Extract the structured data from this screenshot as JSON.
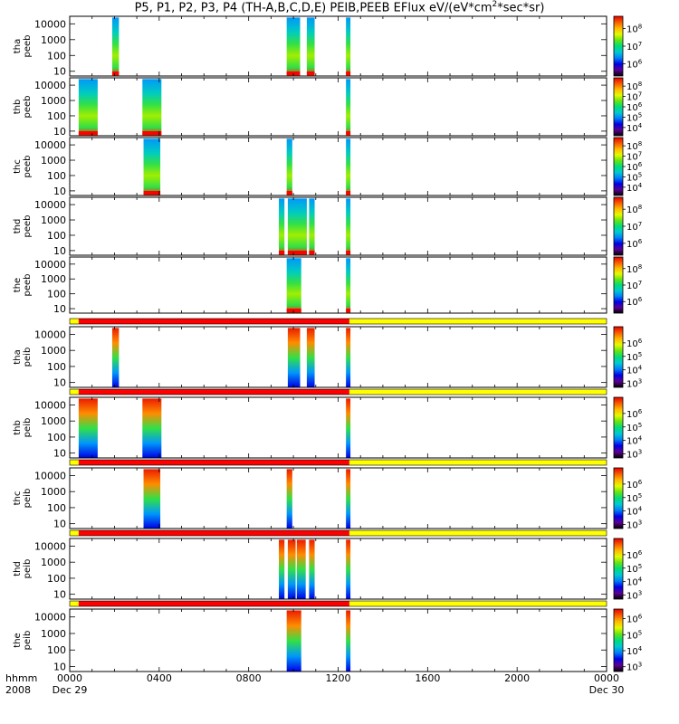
{
  "title_prefix": "P5, P1, P2, P3, P4 (TH-A,B,C,D,E) PEIB,PEEB EFlux eV/(eV*cm",
  "title_mid": "*sec*sr)",
  "title_sup": "2",
  "footer": {
    "hhmm": "hhmm",
    "year": "2008",
    "start_date": "Dec 29",
    "end_date": "Dec 30"
  },
  "chart_data": {
    "type": "heatmap",
    "x": {
      "label": "hhmm",
      "ticks": [
        "0000",
        "0400",
        "0800",
        "1200",
        "1600",
        "2000",
        "0000"
      ],
      "range_hours": [
        0,
        24
      ]
    },
    "y": {
      "scale": "log",
      "unit": "eV",
      "range": [
        5,
        30000
      ],
      "ticks": [
        "10",
        "100",
        "1000",
        "10000"
      ]
    },
    "colormap": "rainbow (black-purple-blue-cyan-green-yellow-orange-red)",
    "panels": [
      {
        "probe": "tha",
        "product": "peeb",
        "colorbar": {
          "log_range": [
            5.3,
            8.7
          ],
          "ticks": [
            "10^6",
            "10^7",
            "10^8"
          ]
        },
        "intervals_hours": [
          [
            1.9,
            2.2
          ],
          [
            9.7,
            10.3
          ],
          [
            10.6,
            10.95
          ],
          [
            12.35,
            12.55
          ]
        ]
      },
      {
        "probe": "thb",
        "product": "peeb",
        "colorbar": {
          "log_range": [
            3.2,
            8.8
          ],
          "ticks": [
            "10^4",
            "10^5",
            "10^6",
            "10^7",
            "10^8"
          ]
        },
        "intervals_hours": [
          [
            0.4,
            1.25
          ],
          [
            3.25,
            4.1
          ],
          [
            12.35,
            12.55
          ]
        ]
      },
      {
        "probe": "thc",
        "product": "peeb",
        "colorbar": {
          "log_range": [
            3.2,
            8.8
          ],
          "ticks": [
            "10^4",
            "10^5",
            "10^6",
            "10^7",
            "10^8"
          ]
        },
        "intervals_hours": [
          [
            3.3,
            4.05
          ],
          [
            9.7,
            9.95
          ],
          [
            12.35,
            12.55
          ]
        ]
      },
      {
        "probe": "thd",
        "product": "peeb",
        "colorbar": {
          "log_range": [
            5.3,
            8.7
          ],
          "ticks": [
            "10^6",
            "10^7",
            "10^8"
          ]
        },
        "intervals_hours": [
          [
            9.35,
            9.6
          ],
          [
            9.75,
            10.6
          ],
          [
            10.7,
            10.95
          ],
          [
            12.35,
            12.55
          ]
        ]
      },
      {
        "probe": "the",
        "product": "peeb",
        "colorbar": {
          "log_range": [
            5.3,
            8.7
          ],
          "ticks": [
            "10^6",
            "10^7",
            "10^8"
          ]
        },
        "intervals_hours": [
          [
            9.7,
            10.35
          ],
          [
            12.35,
            12.55
          ]
        ]
      },
      {
        "probe": "tha",
        "product": "peib",
        "colorbar": {
          "log_range": [
            2.7,
            7.2
          ],
          "ticks": [
            "10^3",
            "10^4",
            "10^5",
            "10^6"
          ]
        },
        "status_bar": {
          "red_hours": [
            0.4,
            12.5
          ],
          "yellow_hours": [
            12.5,
            24
          ]
        },
        "intervals_hours": [
          [
            1.9,
            2.2
          ],
          [
            9.75,
            10.3
          ],
          [
            10.6,
            10.95
          ],
          [
            12.35,
            12.55
          ]
        ]
      },
      {
        "probe": "thb",
        "product": "peib",
        "colorbar": {
          "log_range": [
            2.7,
            7.2
          ],
          "ticks": [
            "10^3",
            "10^4",
            "10^5",
            "10^6"
          ]
        },
        "status_bar": {
          "red_hours": [
            0.4,
            12.5
          ],
          "yellow_hours": [
            12.5,
            24
          ]
        },
        "intervals_hours": [
          [
            0.4,
            1.25
          ],
          [
            3.25,
            4.1
          ],
          [
            12.35,
            12.55
          ]
        ]
      },
      {
        "probe": "thc",
        "product": "peib",
        "colorbar": {
          "log_range": [
            2.7,
            7.2
          ],
          "ticks": [
            "10^3",
            "10^4",
            "10^5",
            "10^6"
          ]
        },
        "status_bar": {
          "red_hours": [
            0.4,
            12.5
          ],
          "yellow_hours": [
            12.5,
            24
          ]
        },
        "intervals_hours": [
          [
            3.3,
            4.05
          ],
          [
            9.7,
            9.95
          ],
          [
            12.35,
            12.55
          ]
        ]
      },
      {
        "probe": "thd",
        "product": "peib",
        "colorbar": {
          "log_range": [
            2.7,
            7.2
          ],
          "ticks": [
            "10^3",
            "10^4",
            "10^5",
            "10^6"
          ]
        },
        "status_bar": {
          "red_hours": [
            0.4,
            12.5
          ],
          "yellow_hours": [
            12.5,
            24
          ]
        },
        "intervals_hours": [
          [
            9.35,
            9.6
          ],
          [
            9.75,
            10.1
          ],
          [
            10.15,
            10.55
          ],
          [
            10.7,
            10.95
          ],
          [
            12.35,
            12.55
          ]
        ]
      },
      {
        "probe": "the",
        "product": "peib",
        "colorbar": {
          "log_range": [
            2.7,
            6.6
          ],
          "ticks": [
            "10^3",
            "10^4",
            "10^5",
            "10^6"
          ]
        },
        "status_bar": {
          "red_hours": [
            0.4,
            12.5
          ],
          "yellow_hours": [
            12.5,
            24
          ]
        },
        "intervals_hours": [
          [
            9.7,
            10.35
          ],
          [
            12.35,
            12.55
          ]
        ]
      }
    ]
  }
}
